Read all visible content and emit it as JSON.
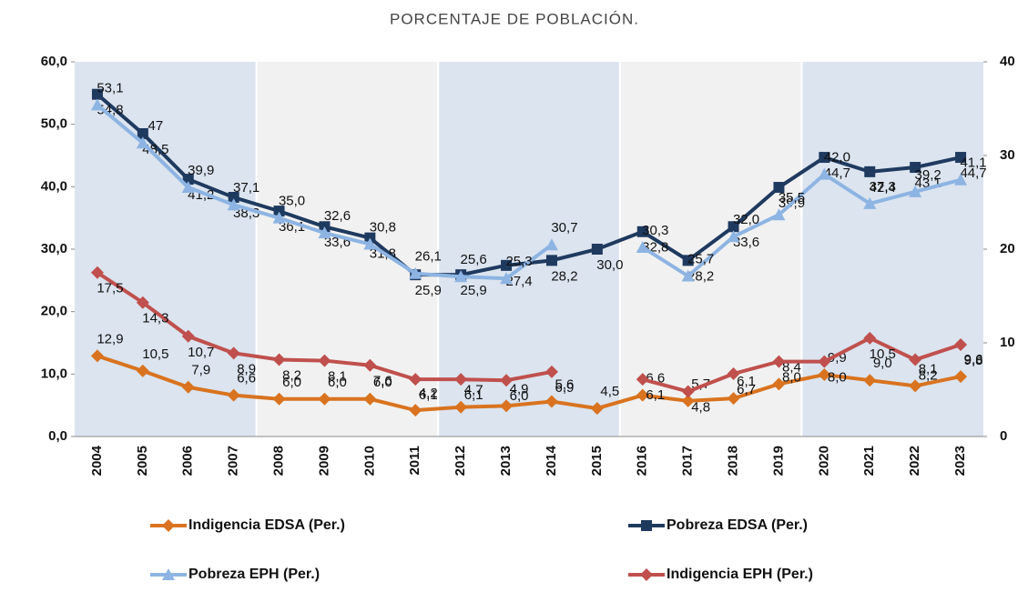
{
  "chart_data": {
    "type": "line",
    "title": "PORCENTAJE DE POBLACIÓN.",
    "categories": [
      "2004",
      "2005",
      "2006",
      "2007",
      "2008",
      "2009",
      "2010",
      "2011",
      "2012",
      "2013",
      "2014",
      "2015",
      "2016",
      "2017",
      "2018",
      "2019",
      "2020",
      "2021",
      "2022",
      "2023"
    ],
    "ylim": [
      0,
      60
    ],
    "yticks": [
      {
        "value": 0,
        "label": "0,0"
      },
      {
        "value": 10,
        "label": "10,0"
      },
      {
        "value": 20,
        "label": "20,0"
      },
      {
        "value": 30,
        "label": "30,0"
      },
      {
        "value": 40,
        "label": "40,0"
      },
      {
        "value": 50,
        "label": "50,0"
      },
      {
        "value": 60,
        "label": "60,0"
      }
    ],
    "y2lim": [
      0,
      40
    ],
    "y2ticks": [
      0,
      10,
      20,
      30,
      40
    ],
    "series": [
      {
        "name": "Indigencia EDSA (Per.)",
        "color": "#d9731f",
        "marker": "diamond",
        "values": [
          12.9,
          10.5,
          7.9,
          6.6,
          6.0,
          6.0,
          6.0,
          4.2,
          4.7,
          4.9,
          5.6,
          4.5,
          6.6,
          5.7,
          6.1,
          8.4,
          9.9,
          9.0,
          8.1,
          9.6
        ],
        "value_labels": [
          "12,9",
          "10,5",
          "7,9",
          "6,6",
          "6,0",
          "6,0",
          "6,0",
          "4,2",
          "4,7",
          "4,9",
          "5,6",
          "4,5",
          "6,6",
          "5,7",
          "6,1",
          "8,4",
          "9,9",
          "9,0",
          "8,1",
          "9,6"
        ]
      },
      {
        "name": "Pobreza EDSA (Per.)",
        "color": "#1f3a5f",
        "marker": "square",
        "values": [
          54.8,
          48.5,
          41.2,
          38.3,
          36.1,
          33.6,
          31.8,
          25.9,
          25.9,
          27.4,
          28.2,
          30.0,
          32.8,
          28.2,
          33.6,
          39.9,
          44.7,
          42.4,
          43.1,
          44.7
        ],
        "value_labels": [
          "54,8",
          "48,5",
          "41,2",
          "38,3",
          "36,1",
          "33,6",
          "31,8",
          "25,9",
          "25,9",
          "27,4",
          "28,2",
          "30,0",
          "32,8",
          "28,2",
          "33,6",
          "39,9",
          "44,7",
          "42,4",
          "43,1",
          "44,7"
        ]
      },
      {
        "name": "Pobreza EPH (Per.)",
        "color": "#8db4e2",
        "marker": "triangle",
        "values": [
          53.1,
          47,
          39.9,
          37.1,
          35.0,
          32.6,
          30.8,
          26.1,
          25.6,
          25.3,
          30.7,
          null,
          30.3,
          25.7,
          32.0,
          35.5,
          42.0,
          37.3,
          39.2,
          41.1
        ],
        "value_labels": [
          "53,1",
          "47",
          "39,9",
          "37,1",
          "35,0",
          "32,6",
          "30,8",
          "26,1",
          "25,6",
          "25,3",
          "30,7",
          null,
          "30,3",
          "25,7",
          "32,0",
          "35,5",
          "42,0",
          "37,3",
          "39,2",
          "41,1"
        ]
      },
      {
        "name": "Indigencia EPH (Per.)",
        "color": "#c0504d",
        "marker": "diamond",
        "axis": "y2",
        "values": [
          17.5,
          14.3,
          10.7,
          8.9,
          8.2,
          8.1,
          7.6,
          6.1,
          6.1,
          6.0,
          6.9,
          null,
          6.1,
          4.8,
          6.7,
          8.0,
          8.0,
          10.5,
          8.2,
          9.8
        ],
        "value_labels": [
          "17,5",
          "14,3",
          "10,7",
          "8,9",
          "8,2",
          "8,1",
          "7,6",
          "6,1",
          "6,1",
          "6,0",
          "6,9",
          null,
          "6,1",
          "4,8",
          "6,7",
          "8,0",
          "8,0",
          "10,5",
          "8,2",
          "9,8"
        ]
      }
    ]
  }
}
